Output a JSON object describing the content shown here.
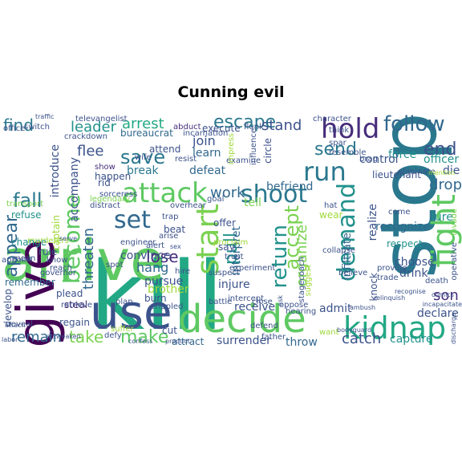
{
  "title": "Cunning evil",
  "words": [
    {
      "text": "kill",
      "color": "#22a884"
    },
    {
      "text": "arrive",
      "color": "#5ec962"
    },
    {
      "text": "stop",
      "color": "#2a788e"
    },
    {
      "text": "decide",
      "color": "#5ec962"
    },
    {
      "text": "give",
      "color": "#440154"
    },
    {
      "text": "use",
      "color": "#3b528b"
    },
    {
      "text": "attack",
      "color": "#5ec962"
    },
    {
      "text": "kidnap",
      "color": "#22a884"
    },
    {
      "text": "run",
      "color": "#2a788e"
    },
    {
      "text": "shoot",
      "color": "#2a788e"
    },
    {
      "text": "hold",
      "color": "#472d7b"
    },
    {
      "text": "follow",
      "color": "#31688e"
    },
    {
      "text": "fight",
      "color": "#5ec962"
    },
    {
      "text": "demand",
      "color": "#21918c"
    },
    {
      "text": "send",
      "color": "#2a788e"
    },
    {
      "text": "start",
      "color": "#7ad151"
    },
    {
      "text": "become",
      "color": "#5ec962"
    },
    {
      "text": "fall",
      "color": "#2a788e"
    },
    {
      "text": "set",
      "color": "#31688e"
    },
    {
      "text": "save",
      "color": "#2a788e"
    },
    {
      "text": "escape",
      "color": "#2a788e"
    },
    {
      "text": "end",
      "color": "#3b528b"
    },
    {
      "text": "appear",
      "color": "#31688e"
    },
    {
      "text": "return",
      "color": "#21918c"
    },
    {
      "text": "accept",
      "color": "#7ad151"
    },
    {
      "text": "make",
      "color": "#5ec962"
    },
    {
      "text": "take",
      "color": "#7ad151"
    },
    {
      "text": "remain",
      "color": "#31688e"
    },
    {
      "text": "leader",
      "color": "#21918c"
    },
    {
      "text": "arrest",
      "color": "#22a884"
    },
    {
      "text": "lose",
      "color": "#472d7b"
    },
    {
      "text": "hang",
      "color": "#31688e"
    },
    {
      "text": "pull",
      "color": "#21918c"
    },
    {
      "text": "work",
      "color": "#31688e"
    },
    {
      "text": "find",
      "color": "#2a788e"
    },
    {
      "text": "flee",
      "color": "#3b528b"
    },
    {
      "text": "drop",
      "color": "#31688e"
    },
    {
      "text": "catch",
      "color": "#3b528b"
    },
    {
      "text": "capture",
      "color": "#21918c"
    },
    {
      "text": "son",
      "color": "#472d7b"
    },
    {
      "text": "organize",
      "color": "#7ad151"
    },
    {
      "text": "threaten",
      "color": "#31688e"
    },
    {
      "text": "accompany",
      "color": "#3b528b"
    },
    {
      "text": "introduce",
      "color": "#3b528b"
    },
    {
      "text": "stand",
      "color": "#3b528b"
    },
    {
      "text": "join",
      "color": "#3b528b"
    },
    {
      "text": "learn",
      "color": "#31688e"
    },
    {
      "text": "defeat",
      "color": "#31688e"
    },
    {
      "text": "break",
      "color": "#2a788e"
    },
    {
      "text": "convince",
      "color": "#3b528b"
    },
    {
      "text": "pursue",
      "color": "#3b528b"
    },
    {
      "text": "brother",
      "color": "#a0da39"
    },
    {
      "text": "befriend",
      "color": "#31688e"
    },
    {
      "text": "tell",
      "color": "#7ad151"
    },
    {
      "text": "interpret",
      "color": "#31688e"
    },
    {
      "text": "injure",
      "color": "#3b528b"
    },
    {
      "text": "receive",
      "color": "#3b528b"
    },
    {
      "text": "surrender",
      "color": "#3b528b"
    },
    {
      "text": "throw",
      "color": "#31688e"
    },
    {
      "text": "admit",
      "color": "#3b528b"
    },
    {
      "text": "declare",
      "color": "#3b528b"
    },
    {
      "text": "choose",
      "color": "#3b528b"
    },
    {
      "text": "drink",
      "color": "#3b528b"
    },
    {
      "text": "respect",
      "color": "#21918c"
    },
    {
      "text": "recognize",
      "color": "#31688e"
    },
    {
      "text": "infiltrate",
      "color": "#31688e"
    },
    {
      "text": "realize",
      "color": "#3b528b"
    },
    {
      "text": "lure",
      "color": "#21918c"
    },
    {
      "text": "die",
      "color": "#3b528b"
    },
    {
      "text": "officer",
      "color": "#21918c"
    },
    {
      "text": "force",
      "color": "#21918c"
    },
    {
      "text": "control",
      "color": "#3b528b"
    },
    {
      "text": "lieutenant",
      "color": "#3b528b"
    },
    {
      "text": "knock",
      "color": "#3b528b"
    },
    {
      "text": "execute",
      "color": "#3b528b"
    },
    {
      "text": "abduct",
      "color": "#472d7b"
    },
    {
      "text": "bureaucrat",
      "color": "#31688e"
    },
    {
      "text": "rid",
      "color": "#3b528b"
    },
    {
      "text": "show",
      "color": "#472d7b"
    },
    {
      "text": "happen",
      "color": "#3b528b"
    },
    {
      "text": "refuse",
      "color": "#21918c"
    },
    {
      "text": "change",
      "color": "#21918c"
    },
    {
      "text": "remember",
      "color": "#31688e"
    },
    {
      "text": "plead",
      "color": "#3b528b"
    },
    {
      "text": "regain",
      "color": "#3b528b"
    },
    {
      "text": "steal",
      "color": "#472d7b"
    },
    {
      "text": "cut",
      "color": "#3b528b"
    },
    {
      "text": "attract",
      "color": "#31688e"
    },
    {
      "text": "develop",
      "color": "#3b528b"
    },
    {
      "text": "rule",
      "color": "#3b528b"
    },
    {
      "text": "wear",
      "color": "#a0da39"
    },
    {
      "text": "hat",
      "color": "#3b528b"
    },
    {
      "text": "overhear",
      "color": "#3b528b"
    },
    {
      "text": "beat",
      "color": "#3b528b"
    },
    {
      "text": "offer",
      "color": "#3b528b"
    },
    {
      "text": "say",
      "color": "#3b528b"
    },
    {
      "text": "captain",
      "color": "#a0da39"
    },
    {
      "text": "appoint",
      "color": "#3b528b"
    },
    {
      "text": "reveal",
      "color": "#3b528b"
    },
    {
      "text": "defend",
      "color": "#3b528b"
    },
    {
      "text": "crippled",
      "color": "#3b528b"
    },
    {
      "text": "burn",
      "color": "#3b528b"
    },
    {
      "text": "battle",
      "color": "#3b528b"
    },
    {
      "text": "stagecoach",
      "color": "#3b528b"
    },
    {
      "text": "oppose",
      "color": "#3b528b"
    },
    {
      "text": "believe",
      "color": "#3b528b"
    },
    {
      "text": "provide",
      "color": "#3b528b"
    },
    {
      "text": "trade",
      "color": "#3b528b"
    },
    {
      "text": "death",
      "color": "#3b528b"
    },
    {
      "text": "come",
      "color": "#3b528b"
    },
    {
      "text": "invade",
      "color": "#7ad151"
    },
    {
      "text": "operative",
      "color": "#3b528b"
    },
    {
      "text": "eliminate",
      "color": "#3b528b"
    },
    {
      "text": "attend",
      "color": "#3b528b"
    },
    {
      "text": "resist",
      "color": "#3b528b"
    },
    {
      "text": "examine",
      "color": "#3b528b"
    },
    {
      "text": "flunk",
      "color": "#3b528b"
    },
    {
      "text": "goal",
      "color": "#3b528b"
    },
    {
      "text": "trap",
      "color": "#3b528b"
    },
    {
      "text": "arise",
      "color": "#3b528b"
    },
    {
      "text": "retrieve",
      "color": "#3b528b"
    },
    {
      "text": "impress",
      "color": "#a0da39"
    },
    {
      "text": "suffer",
      "color": "#a0da39"
    },
    {
      "text": "defy",
      "color": "#3b528b"
    },
    {
      "text": "wife",
      "color": "#3b528b"
    },
    {
      "text": "transport",
      "color": "#7ad151"
    },
    {
      "text": "governor",
      "color": "#3b528b"
    },
    {
      "text": "want",
      "color": "#a0da39"
    },
    {
      "text": "father",
      "color": "#3b528b"
    },
    {
      "text": "character",
      "color": "#3b528b"
    },
    {
      "text": "televangelist",
      "color": "#3b528b"
    },
    {
      "text": "incarnation",
      "color": "#3b528b"
    },
    {
      "text": "traffic",
      "color": "#3b528b"
    },
    {
      "text": "office",
      "color": "#3b528b"
    },
    {
      "text": "switch",
      "color": "#3b528b"
    },
    {
      "text": "brag",
      "color": "#3b528b"
    },
    {
      "text": "crackdown",
      "color": "#3b528b"
    },
    {
      "text": "distract",
      "color": "#3b528b"
    },
    {
      "text": "murderers",
      "color": "#a0da39"
    },
    {
      "text": "sorceress",
      "color": "#3b528b"
    },
    {
      "text": "legendary",
      "color": "#7ad151"
    },
    {
      "text": "engineer",
      "color": "#3b528b"
    },
    {
      "text": "alert",
      "color": "#3b528b"
    },
    {
      "text": "spot",
      "color": "#3b528b"
    },
    {
      "text": "know",
      "color": "#3b528b"
    },
    {
      "text": "mean",
      "color": "#3b528b"
    },
    {
      "text": "reach",
      "color": "#3b528b"
    },
    {
      "text": "hire",
      "color": "#3b528b"
    },
    {
      "text": "trust",
      "color": "#3b528b"
    },
    {
      "text": "suspect",
      "color": "#3b528b"
    },
    {
      "text": "close",
      "color": "#3b528b"
    },
    {
      "text": "hearing",
      "color": "#3b528b"
    },
    {
      "text": "collapse",
      "color": "#3b528b"
    },
    {
      "text": "confess",
      "color": "#3b528b"
    },
    {
      "text": "weaken",
      "color": "#3b528b"
    },
    {
      "text": "comics",
      "color": "#3b528b"
    },
    {
      "text": "discharge",
      "color": "#3b528b"
    },
    {
      "text": "relinquish",
      "color": "#3b528b"
    },
    {
      "text": "incapacitate",
      "color": "#3b528b"
    },
    {
      "text": "ambush",
      "color": "#3b528b"
    },
    {
      "text": "think",
      "color": "#3b528b"
    },
    {
      "text": "spar",
      "color": "#3b528b"
    },
    {
      "text": "resemble",
      "color": "#3b528b"
    },
    {
      "text": "influence",
      "color": "#3b528b"
    },
    {
      "text": "circle",
      "color": "#3b528b"
    },
    {
      "text": "intercept",
      "color": "#3b528b"
    },
    {
      "text": "suggest",
      "color": "#a0da39"
    },
    {
      "text": "plan",
      "color": "#3b528b"
    },
    {
      "text": "proclaim",
      "color": "#a0da39"
    },
    {
      "text": "experiment",
      "color": "#3b528b"
    },
    {
      "text": "mention",
      "color": "#a0da39"
    },
    {
      "text": "recognise",
      "color": "#3b528b"
    },
    {
      "text": "ask",
      "color": "#3b528b"
    },
    {
      "text": "product",
      "color": "#3b528b"
    },
    {
      "text": "serve",
      "color": "#3b528b"
    },
    {
      "text": "attach",
      "color": "#3b528b"
    },
    {
      "text": "labor",
      "color": "#3b528b"
    },
    {
      "text": "act",
      "color": "#3b528b"
    },
    {
      "text": "sex",
      "color": "#3b528b"
    },
    {
      "text": "bodyguard",
      "color": "#3b528b"
    },
    {
      "text": "instruct",
      "color": "#3b528b"
    },
    {
      "text": "kill",
      "color": "#3b528b"
    }
  ]
}
